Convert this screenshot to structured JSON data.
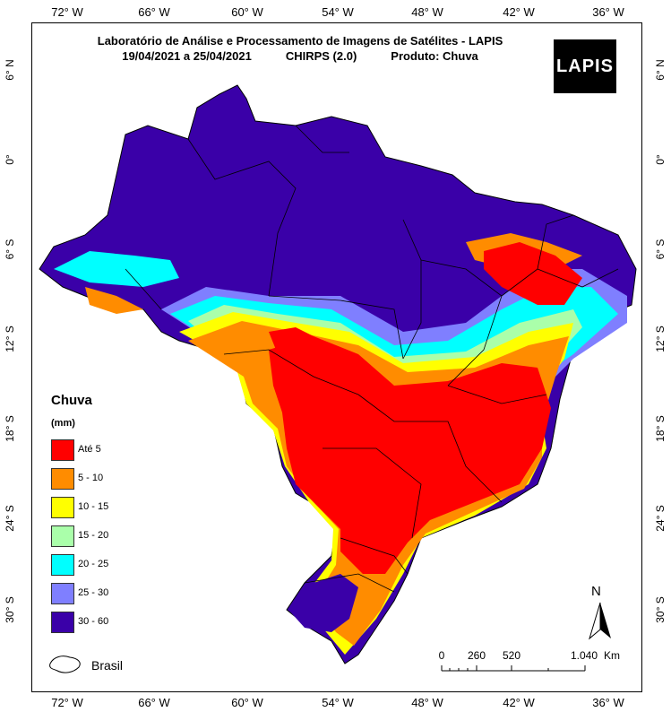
{
  "title": {
    "line1": "Laboratório de Análise e Processamento de Imagens de Satélites - LAPIS",
    "period": "19/04/2021  a 25/04/2021",
    "source": "CHIRPS (2.0)",
    "product": "Produto: Chuva"
  },
  "logo_text": "LAPIS",
  "longitude_ticks": [
    "72° W",
    "66° W",
    "60° W",
    "54° W",
    "48° W",
    "42° W",
    "36° W"
  ],
  "latitude_ticks": [
    "6° N",
    "0°",
    "6° S",
    "12° S",
    "18° S",
    "24° S",
    "30° S"
  ],
  "legend": {
    "title": "Chuva",
    "unit": "(mm)",
    "classes": [
      {
        "label": "Até 5",
        "color": "#ff0000"
      },
      {
        "label": "5 - 10",
        "color": "#ff8c00"
      },
      {
        "label": "10 - 15",
        "color": "#ffff00"
      },
      {
        "label": "15 - 20",
        "color": "#aaffaa"
      },
      {
        "label": "20 - 25",
        "color": "#00ffff"
      },
      {
        "label": "25 - 30",
        "color": "#7f7fff"
      },
      {
        "label": "30 - 60",
        "color": "#3a00a8"
      }
    ],
    "boundary_label": "Brasil"
  },
  "north_label": "N",
  "scale": {
    "labels": [
      "0",
      "260",
      "520",
      "1.040"
    ],
    "unit": "Km"
  }
}
